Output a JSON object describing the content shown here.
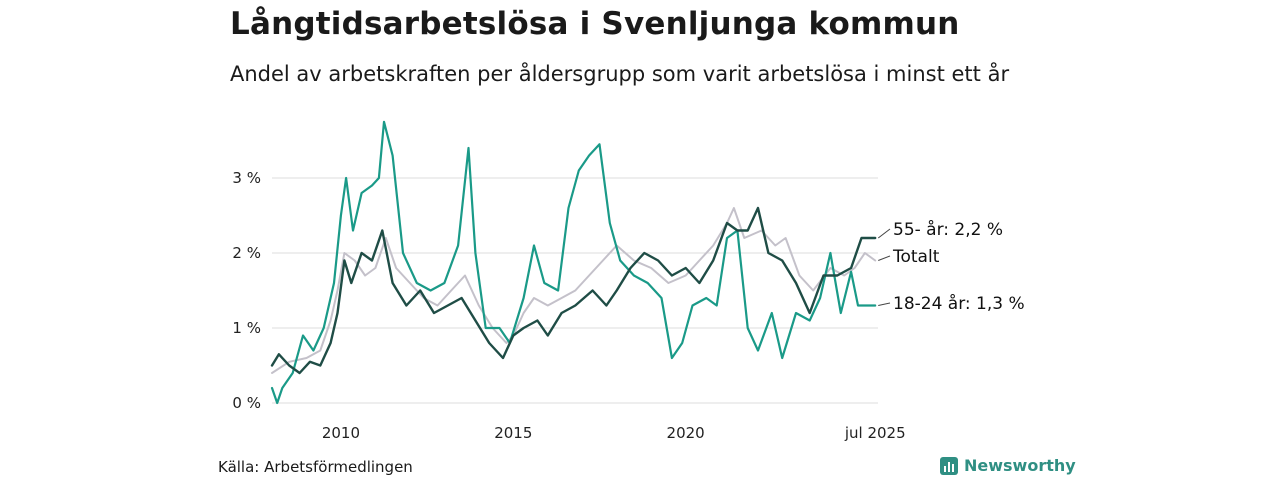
{
  "title": "Långtidsarbetslösa i Svenljunga kommun",
  "subtitle": "Andel av arbetskraften per åldersgrupp som varit arbetslösa i minst ett år",
  "source": "Källa: Arbetsförmedlingen",
  "brand": {
    "name": "Newsworthy",
    "icon": "newsworthy-logo-icon",
    "color": "#2f8f83"
  },
  "chart_data": {
    "type": "line",
    "x_start": "2008-01",
    "x_end": "2025-07",
    "x_ticks": [
      {
        "x": 2010.0,
        "label": "2010"
      },
      {
        "x": 2015.0,
        "label": "2015"
      },
      {
        "x": 2020.0,
        "label": "2020"
      },
      {
        "x": 2025.5,
        "label": "jul 2025"
      }
    ],
    "y_ticks": [
      {
        "y": 0,
        "label": "0 %"
      },
      {
        "y": 1,
        "label": "1 %"
      },
      {
        "y": 2,
        "label": "2 %"
      },
      {
        "y": 3,
        "label": "3 %"
      }
    ],
    "ylim": [
      0,
      3.8
    ],
    "grid": true,
    "series": [
      {
        "name": "Totalt",
        "end_label": "Totalt",
        "color": "#c4c1ca",
        "width": 2,
        "points": [
          [
            2008.0,
            0.4
          ],
          [
            2008.5,
            0.55
          ],
          [
            2009.0,
            0.6
          ],
          [
            2009.4,
            0.7
          ],
          [
            2009.7,
            1.1
          ],
          [
            2009.9,
            1.5
          ],
          [
            2010.1,
            2.0
          ],
          [
            2010.4,
            1.9
          ],
          [
            2010.7,
            1.7
          ],
          [
            2011.0,
            1.8
          ],
          [
            2011.3,
            2.2
          ],
          [
            2011.6,
            1.8
          ],
          [
            2012.0,
            1.6
          ],
          [
            2012.4,
            1.4
          ],
          [
            2012.8,
            1.3
          ],
          [
            2013.2,
            1.5
          ],
          [
            2013.6,
            1.7
          ],
          [
            2014.0,
            1.3
          ],
          [
            2014.4,
            1.0
          ],
          [
            2014.8,
            0.8
          ],
          [
            2015.0,
            0.9
          ],
          [
            2015.3,
            1.2
          ],
          [
            2015.6,
            1.4
          ],
          [
            2016.0,
            1.3
          ],
          [
            2016.4,
            1.4
          ],
          [
            2016.8,
            1.5
          ],
          [
            2017.2,
            1.7
          ],
          [
            2017.6,
            1.9
          ],
          [
            2018.0,
            2.1
          ],
          [
            2018.5,
            1.9
          ],
          [
            2019.0,
            1.8
          ],
          [
            2019.5,
            1.6
          ],
          [
            2020.0,
            1.7
          ],
          [
            2020.4,
            1.9
          ],
          [
            2020.8,
            2.1
          ],
          [
            2021.2,
            2.4
          ],
          [
            2021.4,
            2.6
          ],
          [
            2021.7,
            2.2
          ],
          [
            2022.2,
            2.3
          ],
          [
            2022.6,
            2.1
          ],
          [
            2022.9,
            2.2
          ],
          [
            2023.3,
            1.7
          ],
          [
            2023.7,
            1.5
          ],
          [
            2024.2,
            1.8
          ],
          [
            2024.6,
            1.7
          ],
          [
            2024.9,
            1.8
          ],
          [
            2025.2,
            2.0
          ],
          [
            2025.5,
            1.9
          ]
        ]
      },
      {
        "name": "18-24 år",
        "end_label": "18-24 år: 1,3 %",
        "color": "#1a9a88",
        "width": 2.2,
        "points": [
          [
            2008.0,
            0.2
          ],
          [
            2008.15,
            0.0
          ],
          [
            2008.3,
            0.2
          ],
          [
            2008.6,
            0.4
          ],
          [
            2008.9,
            0.9
          ],
          [
            2009.2,
            0.7
          ],
          [
            2009.5,
            1.0
          ],
          [
            2009.8,
            1.6
          ],
          [
            2010.0,
            2.5
          ],
          [
            2010.15,
            3.0
          ],
          [
            2010.35,
            2.3
          ],
          [
            2010.6,
            2.8
          ],
          [
            2010.9,
            2.9
          ],
          [
            2011.1,
            3.0
          ],
          [
            2011.25,
            3.75
          ],
          [
            2011.5,
            3.3
          ],
          [
            2011.8,
            2.0
          ],
          [
            2012.2,
            1.6
          ],
          [
            2012.6,
            1.5
          ],
          [
            2013.0,
            1.6
          ],
          [
            2013.4,
            2.1
          ],
          [
            2013.7,
            3.4
          ],
          [
            2013.9,
            2.0
          ],
          [
            2014.2,
            1.0
          ],
          [
            2014.6,
            1.0
          ],
          [
            2014.9,
            0.8
          ],
          [
            2015.3,
            1.4
          ],
          [
            2015.6,
            2.1
          ],
          [
            2015.9,
            1.6
          ],
          [
            2016.3,
            1.5
          ],
          [
            2016.6,
            2.6
          ],
          [
            2016.9,
            3.1
          ],
          [
            2017.2,
            3.3
          ],
          [
            2017.5,
            3.45
          ],
          [
            2017.8,
            2.4
          ],
          [
            2018.1,
            1.9
          ],
          [
            2018.5,
            1.7
          ],
          [
            2018.9,
            1.6
          ],
          [
            2019.3,
            1.4
          ],
          [
            2019.6,
            0.6
          ],
          [
            2019.9,
            0.8
          ],
          [
            2020.2,
            1.3
          ],
          [
            2020.6,
            1.4
          ],
          [
            2020.9,
            1.3
          ],
          [
            2021.2,
            2.2
          ],
          [
            2021.5,
            2.3
          ],
          [
            2021.8,
            1.0
          ],
          [
            2022.1,
            0.7
          ],
          [
            2022.5,
            1.2
          ],
          [
            2022.8,
            0.6
          ],
          [
            2023.2,
            1.2
          ],
          [
            2023.6,
            1.1
          ],
          [
            2023.9,
            1.4
          ],
          [
            2024.2,
            2.0
          ],
          [
            2024.5,
            1.2
          ],
          [
            2024.8,
            1.75
          ],
          [
            2025.0,
            1.3
          ],
          [
            2025.5,
            1.3
          ]
        ]
      },
      {
        "name": "55- år",
        "end_label": "55- år: 2,2 %",
        "color": "#1f4d46",
        "width": 2.4,
        "points": [
          [
            2008.0,
            0.5
          ],
          [
            2008.2,
            0.65
          ],
          [
            2008.5,
            0.5
          ],
          [
            2008.8,
            0.4
          ],
          [
            2009.1,
            0.55
          ],
          [
            2009.4,
            0.5
          ],
          [
            2009.7,
            0.8
          ],
          [
            2009.9,
            1.2
          ],
          [
            2010.1,
            1.9
          ],
          [
            2010.3,
            1.6
          ],
          [
            2010.6,
            2.0
          ],
          [
            2010.9,
            1.9
          ],
          [
            2011.2,
            2.3
          ],
          [
            2011.5,
            1.6
          ],
          [
            2011.9,
            1.3
          ],
          [
            2012.3,
            1.5
          ],
          [
            2012.7,
            1.2
          ],
          [
            2013.1,
            1.3
          ],
          [
            2013.5,
            1.4
          ],
          [
            2013.9,
            1.1
          ],
          [
            2014.3,
            0.8
          ],
          [
            2014.7,
            0.6
          ],
          [
            2015.0,
            0.9
          ],
          [
            2015.3,
            1.0
          ],
          [
            2015.7,
            1.1
          ],
          [
            2016.0,
            0.9
          ],
          [
            2016.4,
            1.2
          ],
          [
            2016.8,
            1.3
          ],
          [
            2017.3,
            1.5
          ],
          [
            2017.7,
            1.3
          ],
          [
            2018.0,
            1.5
          ],
          [
            2018.4,
            1.8
          ],
          [
            2018.8,
            2.0
          ],
          [
            2019.2,
            1.9
          ],
          [
            2019.6,
            1.7
          ],
          [
            2020.0,
            1.8
          ],
          [
            2020.4,
            1.6
          ],
          [
            2020.8,
            1.9
          ],
          [
            2021.2,
            2.4
          ],
          [
            2021.5,
            2.3
          ],
          [
            2021.8,
            2.3
          ],
          [
            2022.1,
            2.6
          ],
          [
            2022.4,
            2.0
          ],
          [
            2022.8,
            1.9
          ],
          [
            2023.2,
            1.6
          ],
          [
            2023.6,
            1.2
          ],
          [
            2024.0,
            1.7
          ],
          [
            2024.4,
            1.7
          ],
          [
            2024.8,
            1.8
          ],
          [
            2025.1,
            2.2
          ],
          [
            2025.5,
            2.2
          ]
        ]
      }
    ]
  }
}
